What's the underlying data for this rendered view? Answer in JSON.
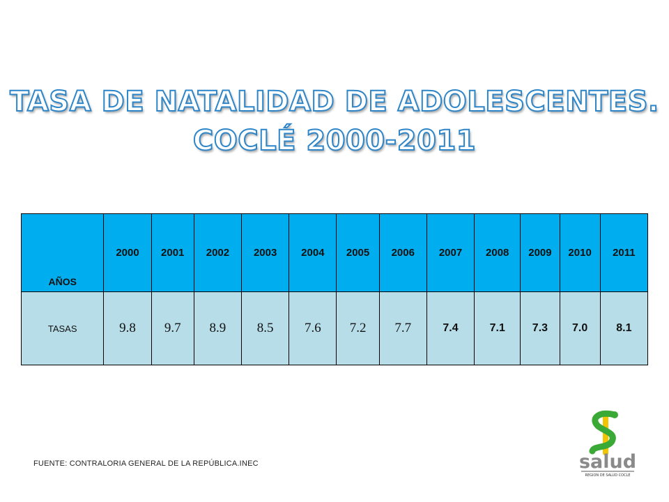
{
  "title": {
    "line1": "TASA DE NATALIDAD DE ADOLESCENTES.",
    "line2": "COCLÉ 2000-2011"
  },
  "table": {
    "row1_label": "AÑOS",
    "row2_label": "TASAS",
    "years": [
      "2000",
      "2001",
      "2002",
      "2003",
      "2004",
      "2005",
      "2006",
      "2007",
      "2008",
      "2009",
      "2010",
      "2011"
    ],
    "rates": [
      "9.8",
      "9.7",
      "8.9",
      "8.5",
      "7.6",
      "7.2",
      "7.7",
      "7.4",
      "7.1",
      "7.3",
      "7.0",
      "8.1"
    ]
  },
  "source": "FUENTE: CONTRALORIA GENERAL DE LA REPÚBLICA.INEC",
  "logo": {
    "text": "salud",
    "subtext": "REGION DE SALUD COCLE",
    "colors": {
      "green": "#3aa935",
      "yellow": "#f2c500",
      "gray": "#8a8a8a"
    }
  }
}
